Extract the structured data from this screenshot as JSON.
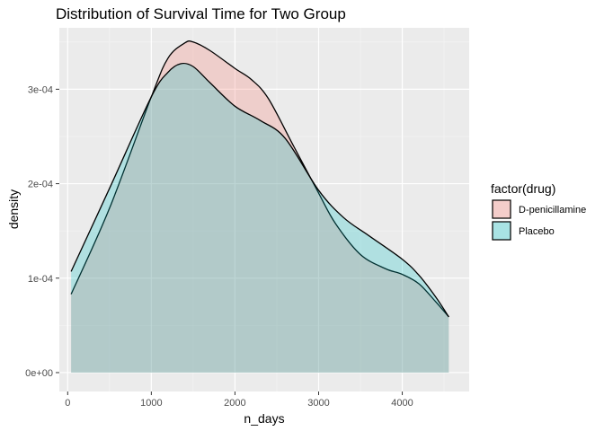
{
  "chart_data": {
    "type": "area",
    "title": "Distribution of Survival Time for Two Group",
    "xlabel": "n_days",
    "ylabel": "density",
    "xlim": [
      -100,
      4800
    ],
    "ylim": [
      -2e-05,
      0.000365
    ],
    "x_ticks": [
      0,
      1000,
      2000,
      3000,
      4000
    ],
    "x_tick_labels": [
      "0",
      "1000",
      "2000",
      "3000",
      "4000"
    ],
    "y_ticks": [
      0,
      0.0001,
      0.0002,
      0.0003
    ],
    "y_tick_labels": [
      "0e+00",
      "1e-04",
      "2e-04",
      "3e-04"
    ],
    "grid": true,
    "legend": {
      "title": "factor(drug)",
      "placement": "right"
    },
    "series": [
      {
        "name": "D-penicillamine",
        "fill": "#F8766D",
        "points": [
          [
            41,
            8.3e-05
          ],
          [
            500,
            0.000174
          ],
          [
            1000,
            0.000292
          ],
          [
            1200,
            0.000333
          ],
          [
            1400,
            0.000349
          ],
          [
            1500,
            0.00035
          ],
          [
            1700,
            0.000341
          ],
          [
            2000,
            0.000322
          ],
          [
            2200,
            0.00031
          ],
          [
            2400,
            0.00029
          ],
          [
            2700,
            0.00024
          ],
          [
            3000,
            0.00019
          ],
          [
            3200,
            0.000158
          ],
          [
            3500,
            0.000125
          ],
          [
            3800,
            0.00011
          ],
          [
            4000,
            0.000104
          ],
          [
            4200,
            9.4e-05
          ],
          [
            4400,
            7.5e-05
          ],
          [
            4556,
            5.9e-05
          ]
        ]
      },
      {
        "name": "Placebo",
        "fill": "#00BFC4",
        "points": [
          [
            41,
            0.000107
          ],
          [
            500,
            0.000195
          ],
          [
            1000,
            0.000292
          ],
          [
            1200,
            0.000318
          ],
          [
            1350,
            0.000327
          ],
          [
            1500,
            0.000324
          ],
          [
            1700,
            0.000307
          ],
          [
            2000,
            0.000282
          ],
          [
            2300,
            0.000267
          ],
          [
            2600,
            0.000248
          ],
          [
            3000,
            0.000193
          ],
          [
            3300,
            0.000164
          ],
          [
            3600,
            0.000145
          ],
          [
            4000,
            0.00012
          ],
          [
            4200,
            0.000103
          ],
          [
            4400,
            8e-05
          ],
          [
            4556,
            5.9e-05
          ]
        ]
      }
    ]
  }
}
